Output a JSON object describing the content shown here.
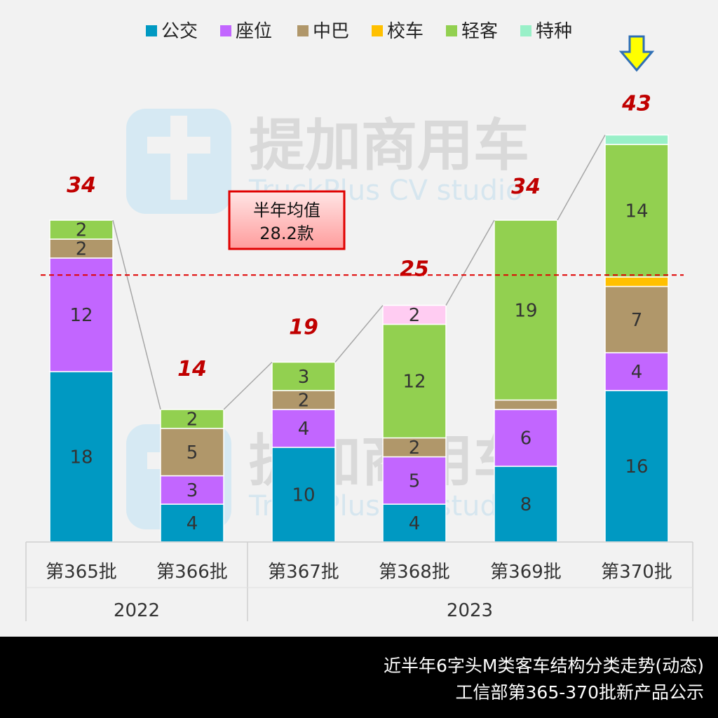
{
  "chart_data": {
    "type": "bar",
    "stacked": true,
    "legend_position": "top",
    "categories": [
      "第365批",
      "第366批",
      "第367批",
      "第368批",
      "第369批",
      "第370批"
    ],
    "year_groups": [
      {
        "label": "2022",
        "categories": [
          "第365批",
          "第366批"
        ]
      },
      {
        "label": "2023",
        "categories": [
          "第367批",
          "第368批",
          "第369批",
          "第370批"
        ]
      }
    ],
    "series": [
      {
        "name": "公交",
        "color": "#0099c2",
        "values": [
          18,
          4,
          10,
          4,
          8,
          16
        ]
      },
      {
        "name": "座位",
        "color": "#c266ff",
        "values": [
          12,
          3,
          4,
          5,
          6,
          4
        ]
      },
      {
        "name": "中巴",
        "color": "#b0976a",
        "values": [
          2,
          5,
          2,
          2,
          1,
          7
        ]
      },
      {
        "name": "校车",
        "color": "#ffc000",
        "values": [
          0,
          0,
          0,
          0,
          0,
          1
        ]
      },
      {
        "name": "轻客",
        "color": "#92d050",
        "values": [
          2,
          2,
          3,
          12,
          19,
          14
        ]
      },
      {
        "name": "特种",
        "color": "#99f0c8",
        "values": [
          0,
          0,
          0,
          0,
          0,
          1
        ]
      },
      {
        "name": "",
        "color": "#ffccf2",
        "values": [
          0,
          0,
          0,
          2,
          0,
          0
        ]
      }
    ],
    "segment_labels": [
      [
        "18",
        "12",
        "2",
        "",
        "2",
        "",
        ""
      ],
      [
        "4",
        "3",
        "5",
        "",
        "2",
        "",
        ""
      ],
      [
        "10",
        "4",
        "2",
        "",
        "3",
        "",
        ""
      ],
      [
        "4",
        "5",
        "2",
        "",
        "12",
        "",
        "2"
      ],
      [
        "8",
        "6",
        "",
        "",
        "19",
        "",
        ""
      ],
      [
        "16",
        "4",
        "7",
        "",
        "14",
        "",
        ""
      ]
    ],
    "totals": [
      34,
      14,
      19,
      25,
      34,
      43
    ],
    "average": {
      "value": 28.2,
      "label_line1": "半年均值",
      "label_line2": "28.2款"
    },
    "ylim": [
      0,
      43
    ],
    "highlight_arrow_category": "第370批"
  },
  "watermark": {
    "cn": "提加商用车",
    "en": "TruckPlus CV studio"
  },
  "footer": {
    "line1": "近半年6字头M类客车结构分类走势(动态)",
    "line2": "工信部第365-370批新产品公示"
  }
}
